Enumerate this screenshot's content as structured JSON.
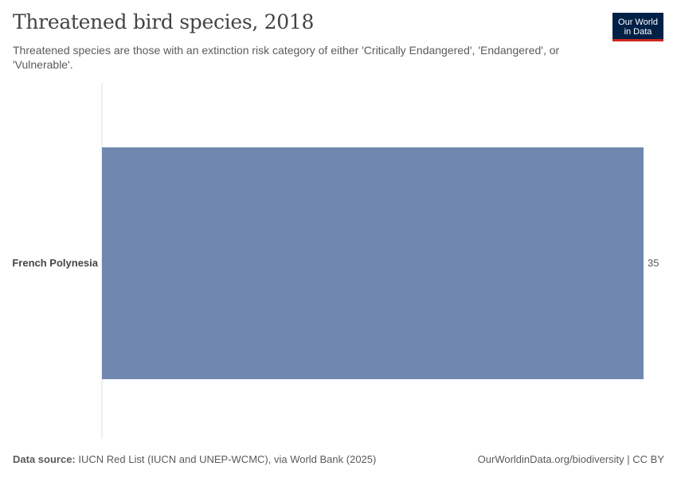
{
  "header": {
    "title": "Threatened bird species, 2018",
    "subtitle": "Threatened species are those with an extinction risk category of either 'Critically Endangered', 'Endangered', or 'Vulnerable'."
  },
  "logo": {
    "line1": "Our World",
    "line2": "in Data"
  },
  "footer": {
    "source_label": "Data source:",
    "source_text": "IUCN Red List (IUCN and UNEP-WCMC), via World Bank (2025)",
    "url_license": "OurWorldinData.org/biodiversity | CC BY"
  },
  "colors": {
    "bar": "#7088b0",
    "axis": "#dddddd",
    "logo_bg": "#002147",
    "logo_accent": "#ce261e"
  },
  "chart_data": {
    "type": "bar",
    "orientation": "horizontal",
    "categories": [
      "French Polynesia"
    ],
    "values": [
      35
    ],
    "data_labels": [
      "35"
    ],
    "xlim": [
      0,
      35
    ],
    "grid": false
  }
}
